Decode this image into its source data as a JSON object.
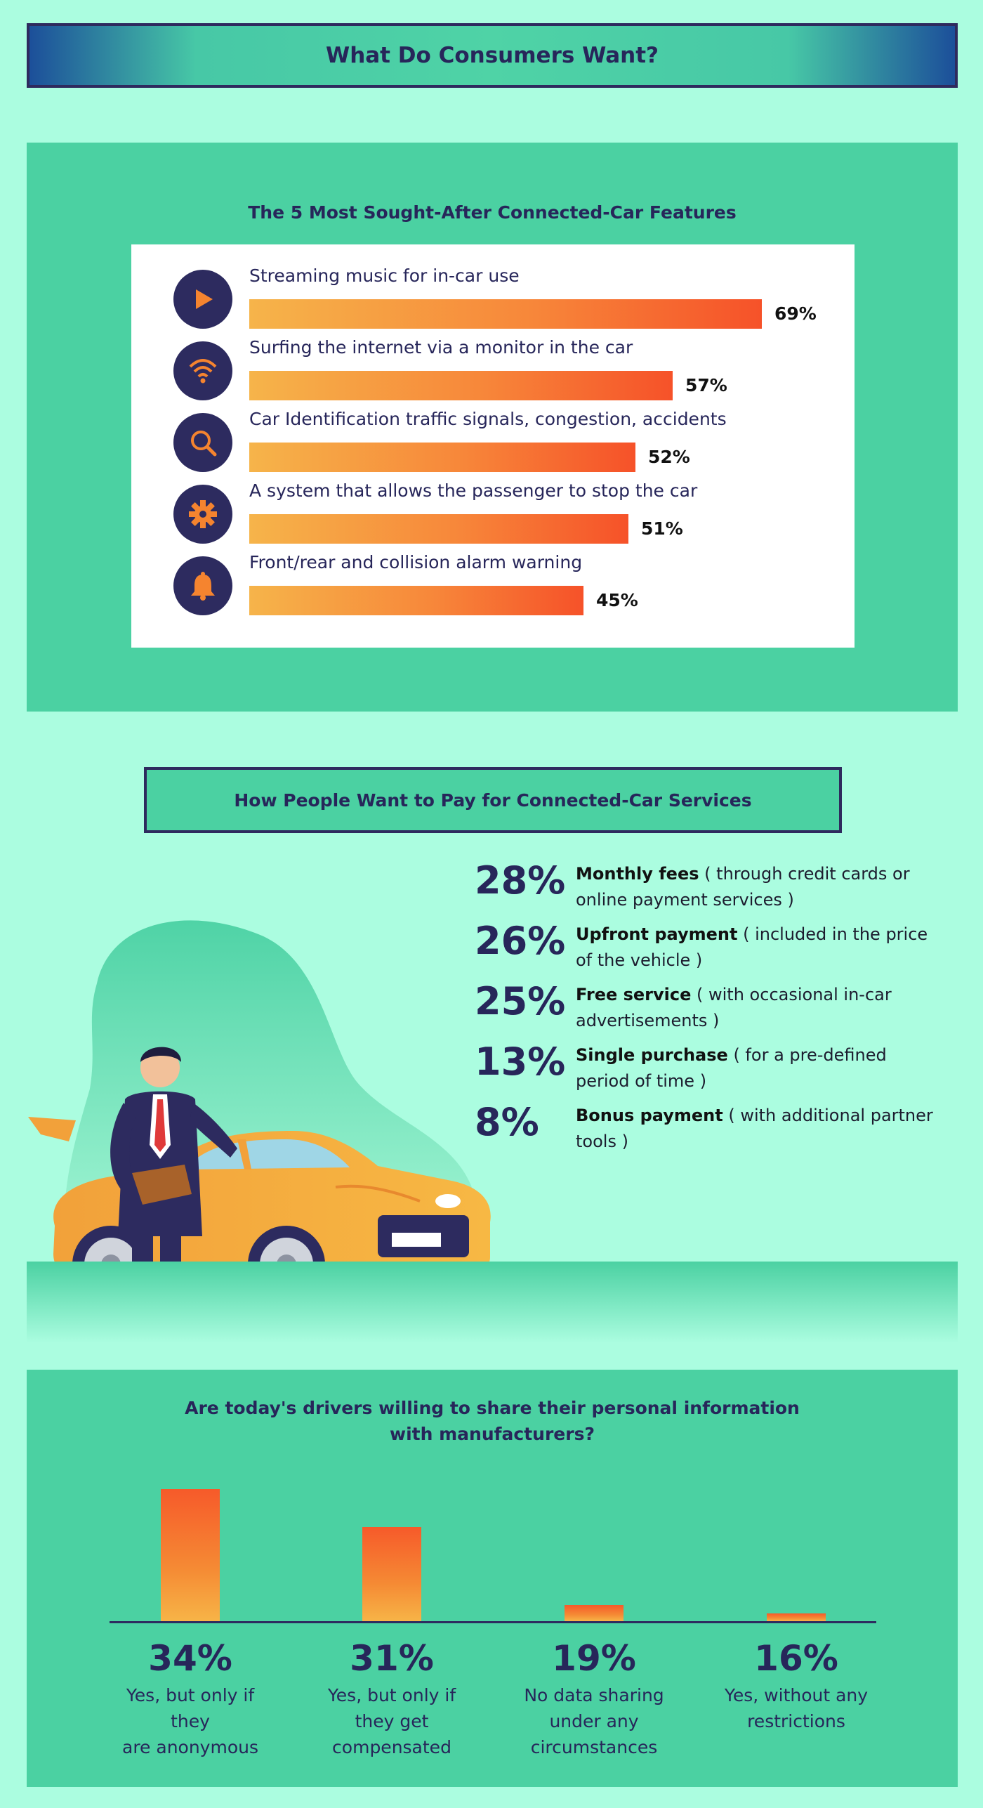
{
  "header": {
    "title": "What Do Consumers Want?"
  },
  "features": {
    "title": "The 5 Most Sought-After Connected-Car Features",
    "items": [
      {
        "label": "Streaming music for in-car use",
        "pct_label": "69%",
        "value": 69,
        "icon": "play-icon"
      },
      {
        "label": "Surfing the internet via a monitor in the car",
        "pct_label": "57%",
        "value": 57,
        "icon": "wifi-icon"
      },
      {
        "label": "Car Identification traffic signals, congestion, accidents",
        "pct_label": "52%",
        "value": 52,
        "icon": "search-icon"
      },
      {
        "label": "A system that allows the passenger to stop the car",
        "pct_label": "51%",
        "value": 51,
        "icon": "gear-icon"
      },
      {
        "label": "Front/rear and collision alarm warning",
        "pct_label": "45%",
        "value": 45,
        "icon": "bell-icon"
      }
    ]
  },
  "payment": {
    "title": "How People Want to Pay for Connected-Car Services",
    "items": [
      {
        "pct": "28%",
        "bold": "Monthly fees",
        "desc": " ( through credit cards or online payment services )"
      },
      {
        "pct": "26%",
        "bold": "Upfront payment",
        "desc": " ( included in the price of the vehicle )"
      },
      {
        "pct": "25%",
        "bold": "Free service",
        "desc": " ( with occasional in-car advertisements )"
      },
      {
        "pct": "13%",
        "bold": "Single purchase",
        "desc": " ( for a pre-defined period of time )"
      },
      {
        "pct": "8%",
        "bold": "Bonus payment",
        "desc": " ( with additional partner tools )"
      }
    ],
    "illustration": "businessman-with-car-illustration"
  },
  "sharing": {
    "title_line1": "Are today's drivers willing to share their personal information",
    "title_line2": "with manufacturers?"
  },
  "chart_data": [
    {
      "type": "bar",
      "orientation": "horizontal",
      "title": "The 5 Most Sought-After Connected-Car Features",
      "categories": [
        "Streaming music for in-car use",
        "Surfing the internet via a monitor in the car",
        "Car Identification traffic signals, congestion, accidents",
        "A system that allows the passenger to stop the car",
        "Front/rear and collision alarm warning"
      ],
      "values": [
        69,
        57,
        52,
        51,
        45
      ],
      "unit": "%"
    },
    {
      "type": "bar",
      "orientation": "vertical",
      "title": "Are today's drivers willing to share their personal information with manufacturers?",
      "categories": [
        "Yes, but only if they are anonymous",
        "Yes, but only if they get compensated",
        "No data sharing under any circumstances",
        "Yes, without any restrictions"
      ],
      "values": [
        34,
        31,
        19,
        16
      ],
      "value_labels": [
        "34%",
        "31%",
        "19%",
        "16%"
      ],
      "unit": "%"
    }
  ],
  "colors": {
    "background": "#abfde0",
    "panel": "#4bd1a2",
    "navy": "#27265a",
    "bar_start": "#f6b44a",
    "bar_end": "#f65229"
  }
}
